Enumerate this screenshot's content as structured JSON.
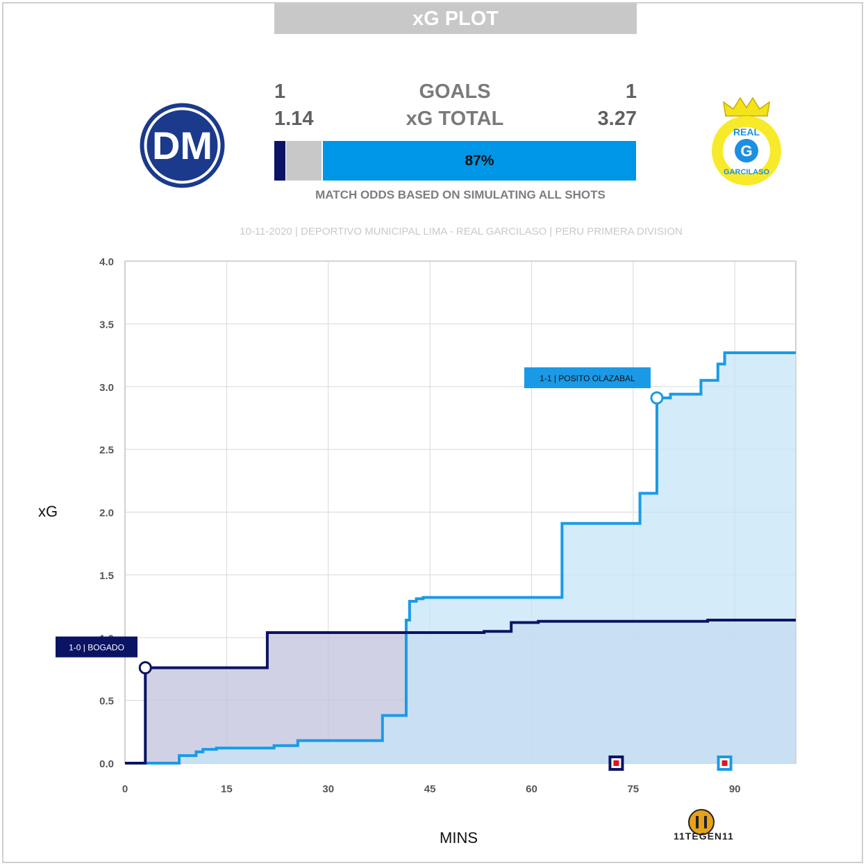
{
  "header": {
    "title": "xG PLOT",
    "goals_label": "GOALS",
    "xg_label": "xG TOTAL",
    "home_goals": "1",
    "away_goals": "1",
    "home_xg": "1.14",
    "away_xg": "3.27",
    "odds": {
      "home": 0.03,
      "draw": 0.1,
      "away": 0.87,
      "away_label": "87%"
    },
    "odds_caption": "MATCH ODDS BASED ON SIMULATING ALL SHOTS",
    "match_info": "10-11-2020 | DEPORTIVO MUNICIPAL LIMA - REAL GARCILASO | PERU PRIMERA DIVISION"
  },
  "teams": {
    "home": {
      "color": "#0b1464",
      "logo_text": "DM"
    },
    "away": {
      "color": "#0096e8",
      "logo_text_top": "REAL",
      "logo_text_mid": "G",
      "logo_text_bottom": "GARCILASO"
    }
  },
  "branding": {
    "text": "11TEGEN11"
  },
  "chart_data": {
    "type": "line",
    "xlabel": "MINS",
    "ylabel": "xG",
    "xlim": [
      0,
      99
    ],
    "ylim": [
      0,
      4
    ],
    "xticks": [
      0,
      15,
      30,
      45,
      60,
      75,
      90
    ],
    "yticks": [
      "0.0",
      "0.5",
      "1.0",
      "1.5",
      "2.0",
      "2.5",
      "3.0",
      "3.5",
      "4.0"
    ],
    "grid": true,
    "series": [
      {
        "team": "home",
        "color": "#0b1464",
        "fill": "#c1c1dc",
        "steps": [
          [
            0,
            0
          ],
          [
            3,
            0
          ],
          [
            3,
            0.76
          ],
          [
            21,
            0.76
          ],
          [
            21,
            1.04
          ],
          [
            53,
            1.04
          ],
          [
            53,
            1.05
          ],
          [
            57,
            1.05
          ],
          [
            57,
            1.12
          ],
          [
            61,
            1.12
          ],
          [
            61,
            1.13
          ],
          [
            86,
            1.13
          ],
          [
            86,
            1.14
          ],
          [
            99,
            1.14
          ]
        ]
      },
      {
        "team": "away",
        "color": "#1a9ae6",
        "fill": "#c5e4f7",
        "steps": [
          [
            0,
            0
          ],
          [
            8,
            0
          ],
          [
            8,
            0.06
          ],
          [
            10.5,
            0.06
          ],
          [
            10.5,
            0.09
          ],
          [
            11.5,
            0.09
          ],
          [
            11.5,
            0.11
          ],
          [
            13.5,
            0.11
          ],
          [
            13.5,
            0.12
          ],
          [
            22,
            0.12
          ],
          [
            22,
            0.14
          ],
          [
            25.5,
            0.14
          ],
          [
            25.5,
            0.18
          ],
          [
            38,
            0.18
          ],
          [
            38,
            0.38
          ],
          [
            41.5,
            0.38
          ],
          [
            41.5,
            1.14
          ],
          [
            42,
            1.14
          ],
          [
            42,
            1.29
          ],
          [
            43,
            1.29
          ],
          [
            43,
            1.31
          ],
          [
            44,
            1.31
          ],
          [
            44,
            1.32
          ],
          [
            64.5,
            1.32
          ],
          [
            64.5,
            1.91
          ],
          [
            76,
            1.91
          ],
          [
            76,
            2.15
          ],
          [
            78.5,
            2.15
          ],
          [
            78.5,
            2.91
          ],
          [
            80.5,
            2.91
          ],
          [
            80.5,
            2.94
          ],
          [
            85,
            2.94
          ],
          [
            85,
            3.05
          ],
          [
            87.5,
            3.05
          ],
          [
            87.5,
            3.18
          ],
          [
            88.5,
            3.18
          ],
          [
            88.5,
            3.27
          ],
          [
            99,
            3.27
          ]
        ]
      }
    ],
    "annotations": [
      {
        "team": "home",
        "label": "1-0 | BOGADO",
        "x": 3,
        "y": 0.76
      },
      {
        "team": "away",
        "label": "1-1 | POSITO OLAZABAL",
        "x": 78.5,
        "y": 2.91
      }
    ],
    "red_cards": [
      {
        "team": "home",
        "x": 72.5
      },
      {
        "team": "away",
        "x": 88.5
      }
    ]
  }
}
